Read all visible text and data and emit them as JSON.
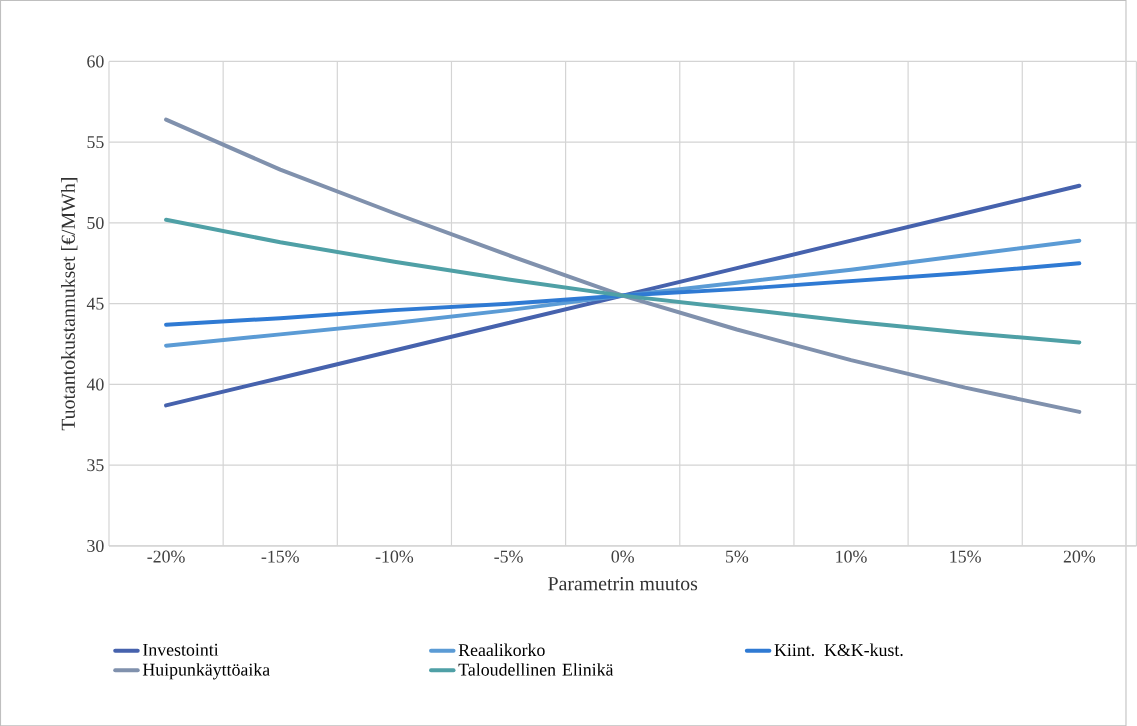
{
  "chart_data": {
    "type": "line",
    "xlabel": "Parametrin muutos",
    "ylabel": "Tuotantokustannukset  [€/MWh]",
    "categories": [
      "-20%",
      "-15%",
      "-10%",
      "-5%",
      "0%",
      "5%",
      "10%",
      "15%",
      "20%"
    ],
    "series": [
      {
        "name": "Investointi",
        "color": "#4662ad",
        "values": [
          38.7,
          40.4,
          42.1,
          43.8,
          45.5,
          47.2,
          48.9,
          50.6,
          52.3
        ]
      },
      {
        "name": "Reaalikorko",
        "color": "#5b9bd5",
        "values": [
          42.4,
          43.1,
          43.8,
          44.6,
          45.5,
          46.3,
          47.1,
          48.0,
          48.9
        ]
      },
      {
        "name": "Kiint. K&K-kust.",
        "color": "#2f7ad3",
        "values": [
          43.7,
          44.1,
          44.6,
          45.0,
          45.5,
          45.9,
          46.4,
          46.9,
          47.5
        ]
      },
      {
        "name": "Huipunkäyttöaika",
        "color": "#8091ad",
        "values": [
          56.4,
          53.3,
          50.6,
          48.0,
          45.5,
          43.4,
          41.5,
          39.8,
          38.3
        ]
      },
      {
        "name": "Taloudellinen Elinikä",
        "color": "#4fa0a6",
        "values": [
          50.2,
          48.8,
          47.6,
          46.5,
          45.5,
          44.7,
          43.9,
          43.2,
          42.6
        ]
      }
    ],
    "ylim": [
      30,
      60
    ],
    "yticks": [
      30,
      35,
      40,
      45,
      50,
      55,
      60
    ],
    "grid": true,
    "legend": "bottom",
    "marker": "none",
    "line_style": "solid"
  }
}
